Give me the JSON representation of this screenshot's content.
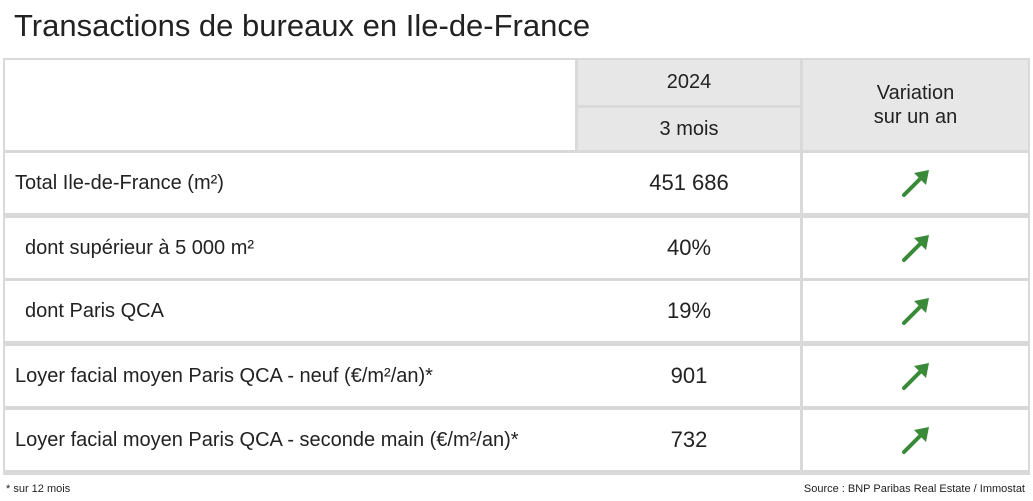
{
  "title": "Transactions de bureaux en Ile-de-France",
  "table": {
    "header": {
      "year": "2024",
      "period": "3 mois",
      "variation": [
        "Variation",
        "sur un an"
      ]
    },
    "rows": [
      [
        "Total Ile-de-France (m²)",
        "451 686"
      ],
      [
        "dont supérieur à 5 000 m²",
        "40%"
      ],
      [
        "dont Paris QCA",
        "19%"
      ],
      [
        "Loyer facial moyen Paris QCA - neuf (€/m²/an)*",
        "901"
      ],
      [
        "Loyer facial moyen Paris QCA - seconde main (€/m²/an)*",
        "732"
      ]
    ]
  },
  "footnote": "* sur 12 mois",
  "source": "Source : BNP Paribas Real Estate / Immostat"
}
